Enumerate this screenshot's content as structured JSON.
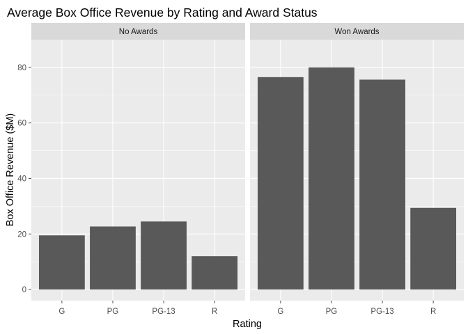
{
  "chart_data": {
    "type": "bar",
    "title": "Average Box Office Revenue by Rating and Award Status",
    "xlabel": "Rating",
    "ylabel": "Box Office Revenue ($M)",
    "categories": [
      "G",
      "PG",
      "PG-13",
      "R"
    ],
    "y_ticks": [
      0,
      20,
      40,
      60,
      80
    ],
    "ylim": [
      -4,
      90
    ],
    "grid": true,
    "legend": "none",
    "facets": [
      {
        "name": "No Awards",
        "values": [
          19.5,
          22.7,
          24.5,
          12.0
        ]
      },
      {
        "name": "Won Awards",
        "values": [
          76.5,
          80.0,
          75.6,
          29.4
        ]
      }
    ],
    "colors": {
      "bar": "#595959",
      "panel": "#ebebeb",
      "strip": "#d9d9d9",
      "grid": "#ffffff",
      "tick": "#4d4d4d"
    }
  }
}
